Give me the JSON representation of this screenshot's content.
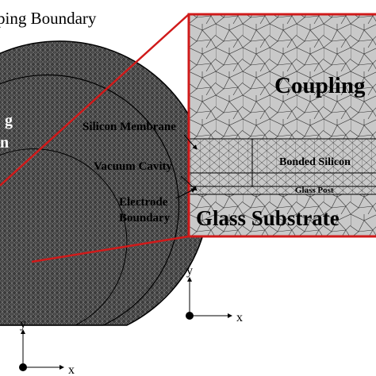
{
  "header": {
    "title": "ping Boundary"
  },
  "model": {
    "labels": [
      "g",
      "n"
    ]
  },
  "inset": {
    "regions": {
      "coupling": "Coupling",
      "bonded": "Bonded Silicon",
      "post": "Glass Post",
      "substrate": "Glass Substrate"
    }
  },
  "callouts": {
    "membrane": "Silicon Membrane",
    "cavity": "Vacuum Cavity",
    "electrode": [
      "Electrode",
      "Boundary"
    ]
  },
  "axes": [
    {
      "y": "y",
      "x": "x"
    },
    {
      "y": "y",
      "x": "x"
    }
  ]
}
